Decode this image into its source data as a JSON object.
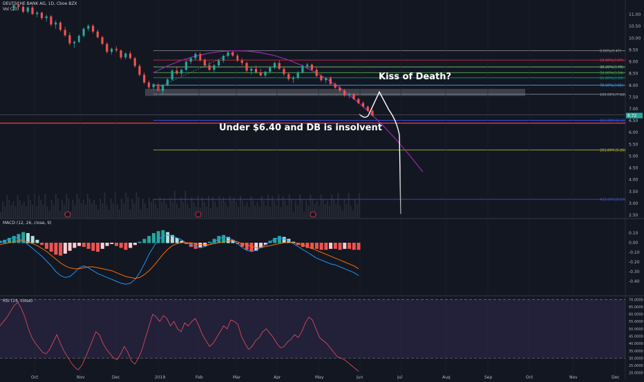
{
  "header": {
    "title": "DEUTSCHE BANK AG, 1D, Cboe BZX",
    "volume_label": "Vol (20)",
    "macd_label": "MACD (12, 26, close, 9)",
    "rsi_label": "RSI (14, close)"
  },
  "annotations": {
    "kiss": "Kiss of Death?",
    "insolvent": "Under $6.40 and DB is insolvent"
  },
  "chart_data": [
    {
      "type": "candlestick",
      "panel": "price",
      "x_ticks": [
        "Oct",
        "Nov",
        "Dec",
        "2019",
        "Feb",
        "Mar",
        "Apr",
        "May",
        "Jun",
        "Jul",
        "Aug",
        "Sep",
        "Oct",
        "Nov",
        "Dec"
      ],
      "ylim": [
        2.5,
        11.5
      ],
      "y_ticks": [
        "11.00",
        "10.50",
        "10.00",
        "9.50",
        "9.00",
        "8.50",
        "8.00",
        "7.50",
        "7.00",
        "6.50",
        "6.00",
        "5.50",
        "5.00",
        "4.50",
        "4.00",
        "3.50",
        "3.00",
        "2.50"
      ],
      "last_price": "6.72",
      "support_price": "6.40",
      "fib_levels": [
        {
          "label": "0.00%(9.47)",
          "value": 9.47,
          "color": "#9598a1"
        },
        {
          "label": "23.60%(9.07)",
          "value": 9.07,
          "color": "#f23645"
        },
        {
          "label": "38.20%(8.78)",
          "value": 8.78,
          "color": "#81c784"
        },
        {
          "label": "50.00%(8.54)",
          "value": 8.54,
          "color": "#4caf50"
        },
        {
          "label": "61.80%(8.32)",
          "value": 8.32,
          "color": "#089981"
        },
        {
          "label": "78.60%(8.01)",
          "value": 8.01,
          "color": "#42a5f5"
        },
        {
          "label": "100.00%(7.62)",
          "value": 7.62,
          "color": "#9598a1"
        },
        {
          "label": "161.80%(6.52)",
          "value": 6.52,
          "color": "#2962ff"
        },
        {
          "label": "261.80%(5.26)",
          "value": 5.26,
          "color": "#afb42b"
        },
        {
          "label": "423.60%(3.17)",
          "value": 3.17,
          "color": "#3f51b5"
        }
      ],
      "candles": [
        [
          11.3,
          11.45,
          11.15,
          11.4
        ],
        [
          11.4,
          11.52,
          11.28,
          11.33
        ],
        [
          11.33,
          11.4,
          11.05,
          11.12
        ],
        [
          11.12,
          11.35,
          11.05,
          11.3
        ],
        [
          11.3,
          11.38,
          10.98,
          11.02
        ],
        [
          11.02,
          11.15,
          10.88,
          11.08
        ],
        [
          11.08,
          11.12,
          10.78,
          10.85
        ],
        [
          10.85,
          11.0,
          10.7,
          10.92
        ],
        [
          10.92,
          10.98,
          10.5,
          10.58
        ],
        [
          10.58,
          10.75,
          10.4,
          10.66
        ],
        [
          10.66,
          10.72,
          10.28,
          10.35
        ],
        [
          10.35,
          10.48,
          10.05,
          10.12
        ],
        [
          10.12,
          10.25,
          9.7,
          9.78
        ],
        [
          9.78,
          9.9,
          9.6,
          9.84
        ],
        [
          9.84,
          10.15,
          9.8,
          10.1
        ],
        [
          10.1,
          10.45,
          10.02,
          10.4
        ],
        [
          10.4,
          10.58,
          10.3,
          10.52
        ],
        [
          10.52,
          10.6,
          10.2,
          10.28
        ],
        [
          10.28,
          10.36,
          9.98,
          10.04
        ],
        [
          10.04,
          10.1,
          9.7,
          9.76
        ],
        [
          9.76,
          9.82,
          9.35,
          9.42
        ],
        [
          9.42,
          9.6,
          9.3,
          9.55
        ],
        [
          9.55,
          9.66,
          9.4,
          9.48
        ],
        [
          9.48,
          9.52,
          9.1,
          9.18
        ],
        [
          9.18,
          9.4,
          9.1,
          9.35
        ],
        [
          9.35,
          9.45,
          9.1,
          9.15
        ],
        [
          9.15,
          9.2,
          8.75,
          8.82
        ],
        [
          8.82,
          8.9,
          8.38,
          8.45
        ],
        [
          8.45,
          8.55,
          8.05,
          8.12
        ],
        [
          8.12,
          8.2,
          7.85,
          7.92
        ],
        [
          7.92,
          8.1,
          7.8,
          8.05
        ],
        [
          8.05,
          8.15,
          7.7,
          7.76
        ],
        [
          7.76,
          8.05,
          7.62,
          8.0
        ],
        [
          8.0,
          8.3,
          7.95,
          8.25
        ],
        [
          8.25,
          8.7,
          8.2,
          8.62
        ],
        [
          8.62,
          8.8,
          8.45,
          8.5
        ],
        [
          8.5,
          8.7,
          8.4,
          8.66
        ],
        [
          8.66,
          9.05,
          8.6,
          9.0
        ],
        [
          9.0,
          9.2,
          8.9,
          9.15
        ],
        [
          9.15,
          9.4,
          9.05,
          9.33
        ],
        [
          9.33,
          9.4,
          9.0,
          9.06
        ],
        [
          9.06,
          9.15,
          8.8,
          8.85
        ],
        [
          8.85,
          9.0,
          8.6,
          8.66
        ],
        [
          8.66,
          8.9,
          8.55,
          8.85
        ],
        [
          8.85,
          9.1,
          8.75,
          9.05
        ],
        [
          9.05,
          9.3,
          8.95,
          9.25
        ],
        [
          9.25,
          9.45,
          9.15,
          9.4
        ],
        [
          9.4,
          9.47,
          9.2,
          9.26
        ],
        [
          9.26,
          9.35,
          9.0,
          9.05
        ],
        [
          9.05,
          9.15,
          8.85,
          8.95
        ],
        [
          8.95,
          9.0,
          8.55,
          8.62
        ],
        [
          8.62,
          8.78,
          8.45,
          8.7
        ],
        [
          8.7,
          8.85,
          8.5,
          8.55
        ],
        [
          8.55,
          8.7,
          8.38,
          8.42
        ],
        [
          8.42,
          8.6,
          8.35,
          8.58
        ],
        [
          8.58,
          8.82,
          8.5,
          8.75
        ],
        [
          8.75,
          9.0,
          8.68,
          8.95
        ],
        [
          8.95,
          9.05,
          8.65,
          8.7
        ],
        [
          8.7,
          8.8,
          8.4,
          8.48
        ],
        [
          8.48,
          8.55,
          8.2,
          8.27
        ],
        [
          8.27,
          8.4,
          8.1,
          8.33
        ],
        [
          8.33,
          8.6,
          8.25,
          8.55
        ],
        [
          8.55,
          8.88,
          8.5,
          8.82
        ],
        [
          8.82,
          8.95,
          8.7,
          8.88
        ],
        [
          8.88,
          8.92,
          8.6,
          8.66
        ],
        [
          8.66,
          8.75,
          8.35,
          8.4
        ],
        [
          8.4,
          8.48,
          8.15,
          8.22
        ],
        [
          8.22,
          8.35,
          8.08,
          8.3
        ],
        [
          8.3,
          8.38,
          8.02,
          8.06
        ],
        [
          8.06,
          8.12,
          7.85,
          7.9
        ],
        [
          7.9,
          8.0,
          7.7,
          7.78
        ],
        [
          7.78,
          7.85,
          7.52,
          7.58
        ],
        [
          7.58,
          7.7,
          7.45,
          7.64
        ],
        [
          7.64,
          7.68,
          7.38,
          7.42
        ],
        [
          7.42,
          7.48,
          7.2,
          7.25
        ],
        [
          7.25,
          7.32,
          7.05,
          7.1
        ],
        [
          7.1,
          7.15,
          6.88,
          6.92
        ],
        [
          6.92,
          6.98,
          6.68,
          6.72
        ]
      ]
    },
    {
      "type": "macd",
      "panel": "macd",
      "ylim": [
        -0.5,
        0.2
      ],
      "y_ticks": [
        "0.10",
        "0.00",
        "-0.10",
        "-0.20",
        "-0.30",
        "-0.40"
      ],
      "histogram": [
        0.02,
        0.03,
        0.05,
        0.07,
        0.09,
        0.11,
        0.1,
        0.07,
        0.03,
        -0.02,
        -0.06,
        -0.09,
        -0.12,
        -0.13,
        -0.11,
        -0.08,
        -0.05,
        -0.03,
        -0.04,
        -0.06,
        -0.08,
        -0.09,
        -0.06,
        -0.03,
        -0.01,
        -0.03,
        -0.05,
        -0.07,
        -0.05,
        -0.02,
        0.01,
        0.04,
        0.07,
        0.1,
        0.12,
        0.13,
        0.11,
        0.08,
        0.05,
        0.02,
        -0.01,
        -0.04,
        -0.06,
        -0.05,
        -0.03,
        0.01,
        0.04,
        0.07,
        0.08,
        0.06,
        0.03,
        -0.01,
        -0.04,
        -0.07,
        -0.09,
        -0.08,
        -0.05,
        -0.02,
        0.02,
        0.05,
        0.07,
        0.06,
        0.04,
        0.01,
        -0.02,
        -0.04,
        -0.05,
        -0.06,
        -0.06,
        -0.07,
        -0.07,
        -0.06,
        -0.06,
        -0.07,
        -0.06,
        -0.06,
        -0.07,
        -0.07
      ],
      "macd": [
        0.0,
        0.02,
        0.04,
        0.06,
        0.04,
        0.02,
        -0.02,
        -0.06,
        -0.1,
        -0.14,
        -0.19,
        -0.24,
        -0.3,
        -0.34,
        -0.36,
        -0.35,
        -0.31,
        -0.26,
        -0.24,
        -0.26,
        -0.29,
        -0.32,
        -0.34,
        -0.36,
        -0.38,
        -0.4,
        -0.42,
        -0.43,
        -0.42,
        -0.38,
        -0.31,
        -0.22,
        -0.12,
        -0.04,
        0.03,
        0.07,
        0.08,
        0.07,
        0.05,
        0.03,
        0.0,
        -0.02,
        -0.04,
        -0.05,
        -0.04,
        -0.02,
        0.01,
        0.04,
        0.06,
        0.05,
        0.03,
        -0.01,
        -0.05,
        -0.08,
        -0.09,
        -0.08,
        -0.05,
        -0.02,
        0.01,
        0.04,
        0.05,
        0.04,
        0.02,
        -0.01,
        -0.04,
        -0.07,
        -0.1,
        -0.13,
        -0.16,
        -0.18,
        -0.2,
        -0.22,
        -0.23,
        -0.25,
        -0.27,
        -0.29,
        -0.31,
        -0.34
      ],
      "signal": [
        -0.02,
        -0.01,
        0.0,
        0.01,
        0.02,
        0.02,
        0.01,
        -0.01,
        -0.03,
        -0.06,
        -0.09,
        -0.13,
        -0.17,
        -0.21,
        -0.24,
        -0.26,
        -0.27,
        -0.27,
        -0.26,
        -0.25,
        -0.25,
        -0.26,
        -0.27,
        -0.28,
        -0.29,
        -0.31,
        -0.33,
        -0.35,
        -0.36,
        -0.37,
        -0.36,
        -0.33,
        -0.29,
        -0.24,
        -0.18,
        -0.12,
        -0.07,
        -0.03,
        -0.01,
        0.0,
        0.0,
        0.0,
        -0.01,
        -0.02,
        -0.02,
        -0.02,
        -0.01,
        0.0,
        0.01,
        0.02,
        0.02,
        0.01,
        -0.01,
        -0.02,
        -0.04,
        -0.05,
        -0.05,
        -0.04,
        -0.03,
        -0.02,
        -0.01,
        0.0,
        0.0,
        0.0,
        -0.01,
        -0.02,
        -0.04,
        -0.06,
        -0.08,
        -0.1,
        -0.12,
        -0.14,
        -0.16,
        -0.18,
        -0.2,
        -0.22,
        -0.24,
        -0.27
      ]
    },
    {
      "type": "rsi",
      "panel": "rsi",
      "ylim": [
        18,
        72
      ],
      "y_ticks": [
        "70.0000",
        "65.0000",
        "60.0000",
        "55.0000",
        "50.0000",
        "45.0000",
        "40.0000",
        "35.0000",
        "30.0000",
        "25.0000",
        "20.0000"
      ],
      "bands": [
        30,
        70
      ],
      "values": [
        52,
        55,
        58,
        62,
        66,
        68,
        64,
        58,
        50,
        44,
        40,
        37,
        34,
        33,
        36,
        41,
        46,
        40,
        35,
        31,
        27,
        24,
        22,
        25,
        30,
        36,
        42,
        48,
        46,
        40,
        36,
        33,
        30,
        29,
        33,
        38,
        34,
        28,
        26,
        30,
        36,
        44,
        52,
        60,
        58,
        55,
        59,
        57,
        52,
        55,
        50,
        48,
        54,
        52,
        55,
        57,
        52,
        46,
        42,
        38,
        40,
        44,
        48,
        52,
        50,
        56,
        55,
        53,
        45,
        40,
        36,
        38,
        42,
        44,
        48,
        50,
        47,
        44,
        40,
        37,
        38,
        41,
        43,
        46,
        44,
        48,
        54,
        58,
        56,
        50,
        44,
        42,
        40,
        37,
        34,
        31,
        30,
        29,
        27,
        25,
        23,
        21
      ]
    }
  ]
}
